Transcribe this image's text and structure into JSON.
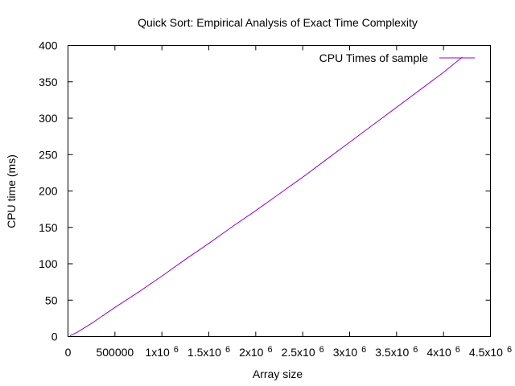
{
  "chart_data": {
    "type": "line",
    "title": "Quick Sort: Empirical Analysis of Exact Time Complexity",
    "xlabel": "Array size",
    "ylabel": "CPU time (ms)",
    "xlim": [
      0,
      4500000
    ],
    "ylim": [
      0,
      400
    ],
    "grid": false,
    "legend_position": "top-right",
    "x_ticks": [
      {
        "value": 0,
        "label": "0",
        "sup": ""
      },
      {
        "value": 500000,
        "label": "500000",
        "sup": ""
      },
      {
        "value": 1000000,
        "label": "1x10",
        "sup": "6"
      },
      {
        "value": 1500000,
        "label": "1.5x10",
        "sup": "6"
      },
      {
        "value": 2000000,
        "label": "2x10",
        "sup": "6"
      },
      {
        "value": 2500000,
        "label": "2.5x10",
        "sup": "6"
      },
      {
        "value": 3000000,
        "label": "3x10",
        "sup": "6"
      },
      {
        "value": 3500000,
        "label": "3.5x10",
        "sup": "6"
      },
      {
        "value": 4000000,
        "label": "4x10",
        "sup": "6"
      },
      {
        "value": 4500000,
        "label": "4.5x10",
        "sup": "6"
      }
    ],
    "y_ticks": [
      {
        "value": 0,
        "label": "0"
      },
      {
        "value": 50,
        "label": "50"
      },
      {
        "value": 100,
        "label": "100"
      },
      {
        "value": 150,
        "label": "150"
      },
      {
        "value": 200,
        "label": "200"
      },
      {
        "value": 250,
        "label": "250"
      },
      {
        "value": 300,
        "label": "300"
      },
      {
        "value": 350,
        "label": "350"
      },
      {
        "value": 400,
        "label": "400"
      }
    ],
    "series": [
      {
        "name": "CPU Times of sample",
        "color": "#9400d3",
        "x": [
          20000,
          100000,
          250000,
          500000,
          750000,
          1000000,
          1250000,
          1500000,
          1750000,
          2000000,
          2250000,
          2500000,
          2750000,
          3000000,
          3250000,
          3500000,
          3750000,
          4000000,
          4200000
        ],
        "y": [
          1,
          6,
          18,
          40,
          61,
          83,
          106,
          128,
          151,
          173,
          196,
          219,
          243,
          267,
          291,
          315,
          339,
          363,
          384
        ]
      }
    ]
  }
}
